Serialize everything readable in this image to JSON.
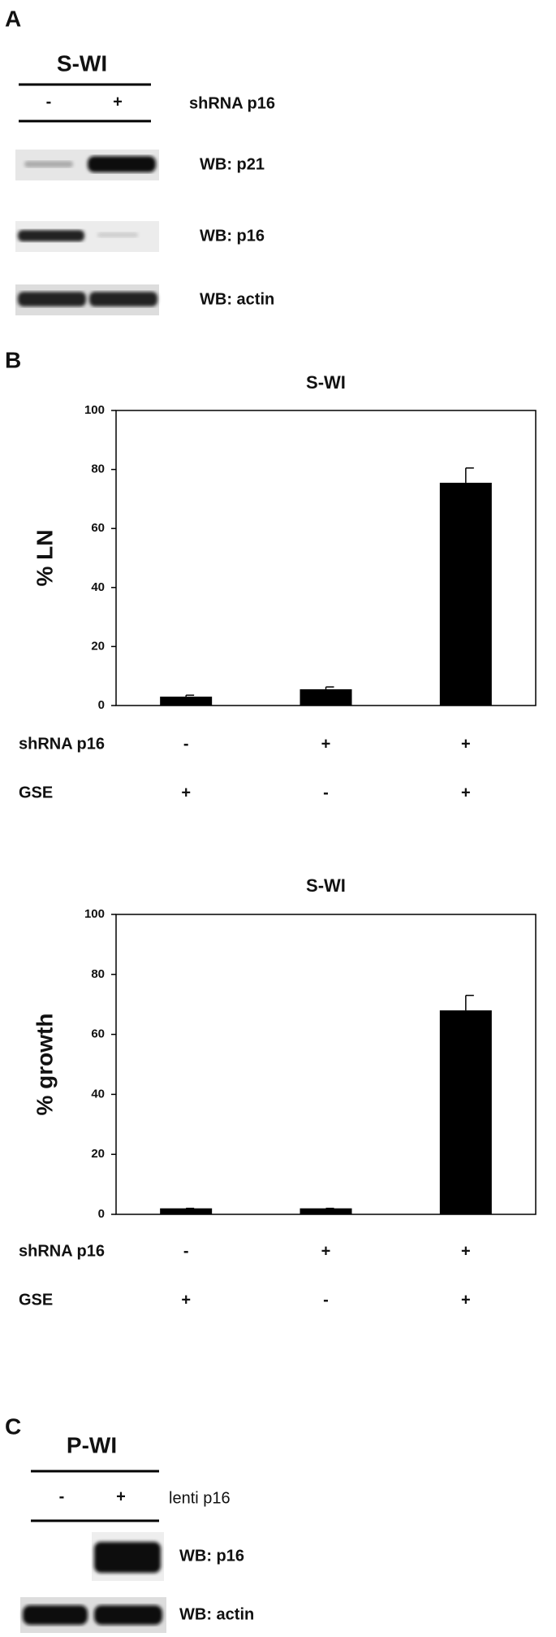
{
  "panel_a": {
    "label": "A",
    "cell_line": "S-WI",
    "lanes": [
      "-",
      "+"
    ],
    "treatment": "shRNA p16",
    "blots": [
      "WB: p21",
      "WB: p16",
      "WB: actin"
    ]
  },
  "chart_data": [
    {
      "type": "bar",
      "panel_label": "B",
      "title": "S-WI",
      "y_label": "% LN",
      "conditions": [
        {
          "name": "shRNA p16",
          "signs": [
            "-",
            "+",
            "+"
          ]
        },
        {
          "name": "GSE",
          "signs": [
            "+",
            "-",
            "+"
          ]
        }
      ],
      "values": [
        3,
        5.5,
        75.5
      ],
      "errors": [
        0.5,
        0.8,
        5
      ],
      "color": "#000000",
      "ylim": [
        0,
        100
      ],
      "yticks": [
        0,
        20,
        40,
        60,
        80,
        100
      ]
    },
    {
      "type": "bar",
      "title": "S-WI",
      "y_label": "% growth",
      "conditions": [
        {
          "name": "shRNA p16",
          "signs": [
            "-",
            "+",
            "+"
          ]
        },
        {
          "name": "GSE",
          "signs": [
            "+",
            "-",
            "+"
          ]
        }
      ],
      "values": [
        2,
        2,
        68
      ],
      "errors": [
        0,
        0,
        5
      ],
      "color": "#000000",
      "ylim": [
        0,
        100
      ],
      "yticks": [
        0,
        20,
        40,
        60,
        80,
        100
      ]
    }
  ],
  "panel_c": {
    "label": "C",
    "cell_line": "P-WI",
    "lanes": [
      "-",
      "+"
    ],
    "treatment": "lenti p16",
    "blots": [
      "WB: p16",
      "WB: actin"
    ]
  }
}
